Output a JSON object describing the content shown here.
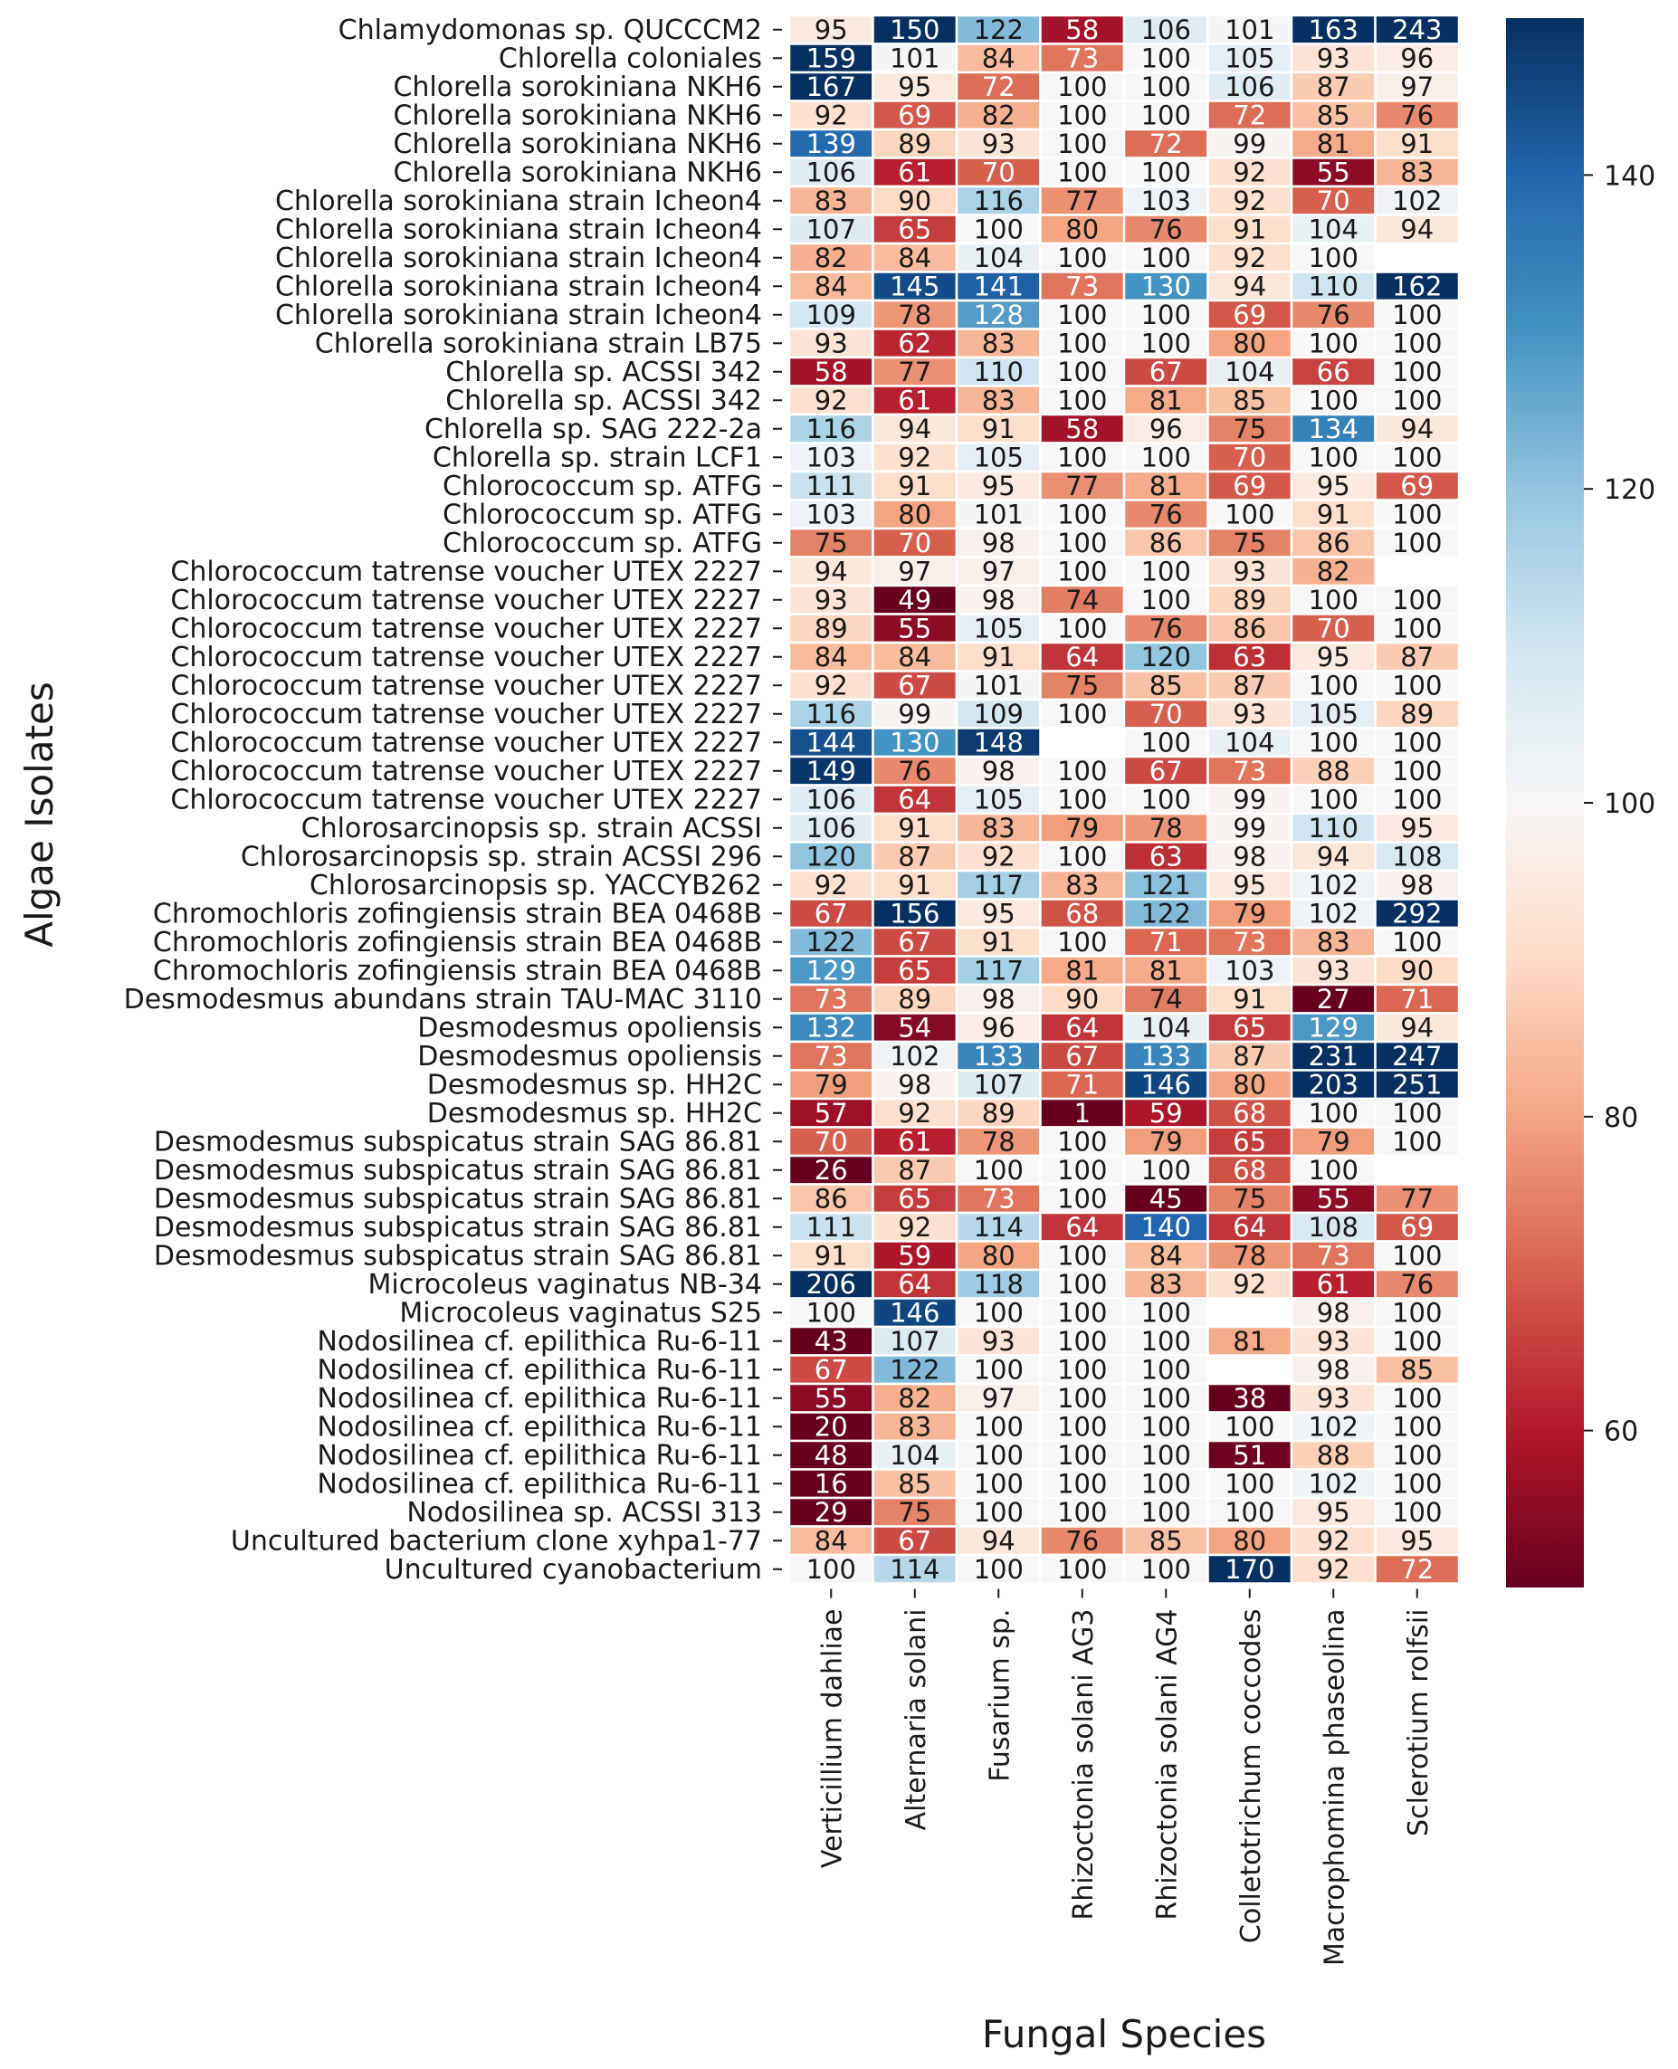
{
  "chart_data": {
    "type": "heatmap",
    "xlabel": "Fungal Species",
    "ylabel": "Algae Isolates",
    "columns": [
      "Verticillium dahliae",
      "Alternaria solani",
      "Fusarium sp.",
      "Rhizoctonia solani AG3",
      "Rhizoctonia solani AG4",
      "Colletotrichum coccodes",
      "Macrophomina phaseolina",
      "Sclerotium rolfsii"
    ],
    "rows": [
      "Chlamydomonas sp. QUCCCM2",
      "Chlorella coloniales",
      "Chlorella sorokiniana NKH6",
      "Chlorella sorokiniana NKH6",
      "Chlorella sorokiniana NKH6",
      "Chlorella sorokiniana NKH6",
      "Chlorella sorokiniana strain Icheon4",
      "Chlorella sorokiniana strain Icheon4",
      "Chlorella sorokiniana strain Icheon4",
      "Chlorella sorokiniana strain Icheon4",
      "Chlorella sorokiniana strain Icheon4",
      "Chlorella sorokiniana strain LB75",
      "Chlorella sp. ACSSI 342",
      "Chlorella sp. ACSSI 342",
      "Chlorella sp. SAG 222-2a",
      "Chlorella sp. strain LCF1",
      "Chlorococcum sp. ATFG",
      "Chlorococcum sp. ATFG",
      "Chlorococcum sp. ATFG",
      "Chlorococcum tatrense voucher UTEX 2227",
      "Chlorococcum tatrense voucher UTEX 2227",
      "Chlorococcum tatrense voucher UTEX 2227",
      "Chlorococcum tatrense voucher UTEX 2227",
      "Chlorococcum tatrense voucher UTEX 2227",
      "Chlorococcum tatrense voucher UTEX 2227",
      "Chlorococcum tatrense voucher UTEX 2227",
      "Chlorococcum tatrense voucher UTEX 2227",
      "Chlorococcum tatrense voucher UTEX 2227",
      "Chlorosarcinopsis sp. strain ACSSI",
      "Chlorosarcinopsis sp. strain ACSSI 296",
      "Chlorosarcinopsis sp. YACCYB262",
      "Chromochloris zofingiensis strain BEA 0468B",
      "Chromochloris zofingiensis strain BEA 0468B",
      "Chromochloris zofingiensis strain BEA 0468B",
      "Desmodesmus abundans strain TAU-MAC 3110",
      "Desmodesmus opoliensis",
      "Desmodesmus opoliensis",
      "Desmodesmus sp. HH2C",
      "Desmodesmus sp. HH2C",
      "Desmodesmus subspicatus strain SAG 86.81",
      "Desmodesmus subspicatus strain SAG 86.81",
      "Desmodesmus subspicatus strain SAG 86.81",
      "Desmodesmus subspicatus strain SAG 86.81",
      "Desmodesmus subspicatus strain SAG 86.81",
      "Microcoleus vaginatus NB-34",
      "Microcoleus vaginatus S25",
      "Nodosilinea cf. epilithica Ru-6-11",
      "Nodosilinea cf. epilithica Ru-6-11",
      "Nodosilinea cf. epilithica Ru-6-11",
      "Nodosilinea cf. epilithica Ru-6-11",
      "Nodosilinea cf. epilithica Ru-6-11",
      "Nodosilinea cf. epilithica Ru-6-11",
      "Nodosilinea sp. ACSSI 313",
      "Uncultured bacterium clone xyhpa1-77",
      "Uncultured cyanobacterium"
    ],
    "values": [
      [
        95,
        150,
        122,
        58,
        106,
        101,
        163,
        243
      ],
      [
        159,
        101,
        84,
        73,
        100,
        105,
        93,
        96
      ],
      [
        167,
        95,
        72,
        100,
        100,
        106,
        87,
        97
      ],
      [
        92,
        69,
        82,
        100,
        100,
        72,
        85,
        76
      ],
      [
        139,
        89,
        93,
        100,
        72,
        99,
        81,
        91
      ],
      [
        106,
        61,
        70,
        100,
        100,
        92,
        55,
        83
      ],
      [
        83,
        90,
        116,
        77,
        103,
        92,
        70,
        102
      ],
      [
        107,
        65,
        100,
        80,
        76,
        91,
        104,
        94
      ],
      [
        82,
        84,
        104,
        100,
        100,
        92,
        100,
        null
      ],
      [
        84,
        145,
        141,
        73,
        130,
        94,
        110,
        162
      ],
      [
        109,
        78,
        128,
        100,
        100,
        69,
        76,
        100
      ],
      [
        93,
        62,
        83,
        100,
        100,
        80,
        100,
        100
      ],
      [
        58,
        77,
        110,
        100,
        67,
        104,
        66,
        100
      ],
      [
        92,
        61,
        83,
        100,
        81,
        85,
        100,
        100
      ],
      [
        116,
        94,
        91,
        58,
        96,
        75,
        134,
        94
      ],
      [
        103,
        92,
        105,
        100,
        100,
        70,
        100,
        100
      ],
      [
        111,
        91,
        95,
        77,
        81,
        69,
        95,
        69
      ],
      [
        103,
        80,
        101,
        100,
        76,
        100,
        91,
        100
      ],
      [
        75,
        70,
        98,
        100,
        86,
        75,
        86,
        100
      ],
      [
        94,
        97,
        97,
        100,
        100,
        93,
        82,
        null
      ],
      [
        93,
        49,
        98,
        74,
        100,
        89,
        100,
        100
      ],
      [
        89,
        55,
        105,
        100,
        76,
        86,
        70,
        100
      ],
      [
        84,
        84,
        91,
        64,
        120,
        63,
        95,
        87
      ],
      [
        92,
        67,
        101,
        75,
        85,
        87,
        100,
        100
      ],
      [
        116,
        99,
        109,
        100,
        70,
        93,
        105,
        89
      ],
      [
        144,
        130,
        148,
        null,
        100,
        104,
        100,
        100
      ],
      [
        149,
        76,
        98,
        100,
        67,
        73,
        88,
        100
      ],
      [
        106,
        64,
        105,
        100,
        100,
        99,
        100,
        100
      ],
      [
        106,
        91,
        83,
        79,
        78,
        99,
        110,
        95
      ],
      [
        120,
        87,
        92,
        100,
        63,
        98,
        94,
        108
      ],
      [
        92,
        91,
        117,
        83,
        121,
        95,
        102,
        98
      ],
      [
        67,
        156,
        95,
        68,
        122,
        79,
        102,
        292
      ],
      [
        122,
        67,
        91,
        100,
        71,
        73,
        83,
        100
      ],
      [
        129,
        65,
        117,
        81,
        81,
        103,
        93,
        90
      ],
      [
        73,
        89,
        98,
        90,
        74,
        91,
        27,
        71
      ],
      [
        132,
        54,
        96,
        64,
        104,
        65,
        129,
        94
      ],
      [
        73,
        102,
        133,
        67,
        133,
        87,
        231,
        247
      ],
      [
        79,
        98,
        107,
        71,
        146,
        80,
        203,
        251
      ],
      [
        57,
        92,
        89,
        1,
        59,
        68,
        100,
        100
      ],
      [
        70,
        61,
        78,
        100,
        79,
        65,
        79,
        100
      ],
      [
        26,
        87,
        100,
        100,
        100,
        68,
        100,
        null
      ],
      [
        86,
        65,
        73,
        100,
        45,
        75,
        55,
        77
      ],
      [
        111,
        92,
        114,
        64,
        140,
        64,
        108,
        69
      ],
      [
        91,
        59,
        80,
        100,
        84,
        78,
        73,
        100
      ],
      [
        206,
        64,
        118,
        100,
        83,
        92,
        61,
        76
      ],
      [
        100,
        146,
        100,
        100,
        100,
        null,
        98,
        100
      ],
      [
        43,
        107,
        93,
        100,
        100,
        81,
        93,
        100
      ],
      [
        67,
        122,
        100,
        100,
        100,
        null,
        98,
        85
      ],
      [
        55,
        82,
        97,
        100,
        100,
        38,
        93,
        100
      ],
      [
        20,
        83,
        100,
        100,
        100,
        100,
        102,
        100
      ],
      [
        48,
        104,
        100,
        100,
        100,
        51,
        88,
        100
      ],
      [
        16,
        85,
        100,
        100,
        100,
        100,
        102,
        100
      ],
      [
        29,
        75,
        100,
        100,
        100,
        100,
        95,
        100
      ],
      [
        84,
        67,
        94,
        76,
        85,
        80,
        92,
        95
      ],
      [
        100,
        114,
        100,
        100,
        100,
        170,
        92,
        72
      ]
    ],
    "colormap": "RdBu",
    "vmin": 50,
    "vmax": 150,
    "colorbar_ticks": [
      60,
      80,
      100,
      120,
      140
    ],
    "colorbar_position": "right",
    "grid": true
  }
}
